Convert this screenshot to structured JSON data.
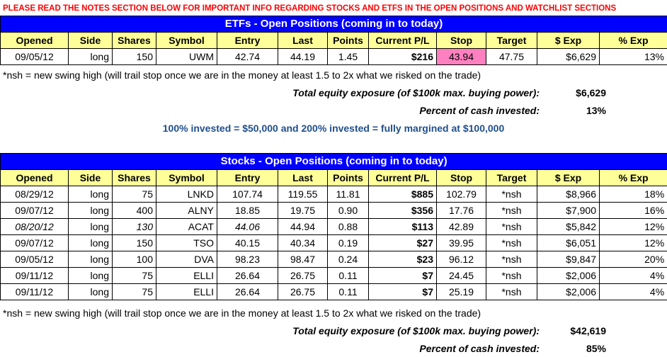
{
  "notice": "PLEASE READ THE NOTES SECTION BELOW FOR IMPORTANT INFO REGARDING STOCKS AND ETFS IN THE OPEN POSITIONS AND WATCHLIST SECTIONS",
  "columns": [
    "Opened",
    "Side",
    "Shares",
    "Symbol",
    "Entry",
    "Last",
    "Points",
    "Current P/L",
    "Stop",
    "Target",
    "$ Exp",
    "% Exp"
  ],
  "etf": {
    "title": "ETFs - Open Positions (coming in to today)",
    "rows": [
      {
        "opened": "09/05/12",
        "side": "long",
        "shares": "150",
        "symbol": "UWM",
        "entry": "42.74",
        "last": "44.19",
        "points": "1.45",
        "pl": "$216",
        "stop": "43.94",
        "target": "47.75",
        "exp": "$6,629",
        "pct": "13%"
      }
    ],
    "note": "*nsh = new swing high (will trail stop once we are in the money at least 1.5 to 2x what we risked on the trade)",
    "exposure_label": "Total equity exposure (of $100k max. buying power):",
    "exposure_value": "$6,629",
    "cash_label": "Percent of cash invested:",
    "cash_value": "13%",
    "invested_note": "100% invested = $50,000 and 200% invested = fully margined at $100,000"
  },
  "stocks": {
    "title": "Stocks - Open Positions (coming in to today)",
    "rows": [
      {
        "opened": "08/29/12",
        "side": "long",
        "shares": "75",
        "symbol": "LNKD",
        "entry": "107.74",
        "last": "119.55",
        "points": "11.81",
        "pl": "$885",
        "stop": "102.79",
        "target": "*nsh",
        "exp": "$8,966",
        "pct": "18%"
      },
      {
        "opened": "09/07/12",
        "side": "long",
        "shares": "400",
        "symbol": "ALNY",
        "entry": "18.85",
        "last": "19.75",
        "points": "0.90",
        "pl": "$356",
        "stop": "17.76",
        "target": "*nsh",
        "exp": "$7,900",
        "pct": "16%"
      },
      {
        "opened": "08/20/12",
        "side": "long",
        "shares": "130",
        "symbol": "ACAT",
        "entry": "44.06",
        "last": "44.94",
        "points": "0.88",
        "pl": "$113",
        "stop": "42.89",
        "target": "*nsh",
        "exp": "$5,842",
        "pct": "12%"
      },
      {
        "opened": "09/07/12",
        "side": "long",
        "shares": "150",
        "symbol": "TSO",
        "entry": "40.15",
        "last": "40.34",
        "points": "0.19",
        "pl": "$27",
        "stop": "39.95",
        "target": "*nsh",
        "exp": "$6,051",
        "pct": "12%"
      },
      {
        "opened": "09/05/12",
        "side": "long",
        "shares": "100",
        "symbol": "DVA",
        "entry": "98.23",
        "last": "98.47",
        "points": "0.24",
        "pl": "$23",
        "stop": "96.12",
        "target": "*nsh",
        "exp": "$9,847",
        "pct": "20%"
      },
      {
        "opened": "09/11/12",
        "side": "long",
        "shares": "75",
        "symbol": "ELLI",
        "entry": "26.64",
        "last": "26.75",
        "points": "0.11",
        "pl": "$7",
        "stop": "24.45",
        "target": "*nsh",
        "exp": "$2,006",
        "pct": "4%"
      },
      {
        "opened": "09/11/12",
        "side": "long",
        "shares": "75",
        "symbol": "ELLI",
        "entry": "26.64",
        "last": "26.75",
        "points": "0.11",
        "pl": "$7",
        "stop": "25.19",
        "target": "*nsh",
        "exp": "$2,006",
        "pct": "4%"
      }
    ],
    "note": "*nsh = new swing high (will trail stop once we are in the money at least 1.5 to 2x what we risked on the trade)",
    "exposure_label": "Total equity exposure (of $100k max. buying power):",
    "exposure_value": "$42,619",
    "cash_label": "Percent of cash invested:",
    "cash_value": "85%"
  }
}
